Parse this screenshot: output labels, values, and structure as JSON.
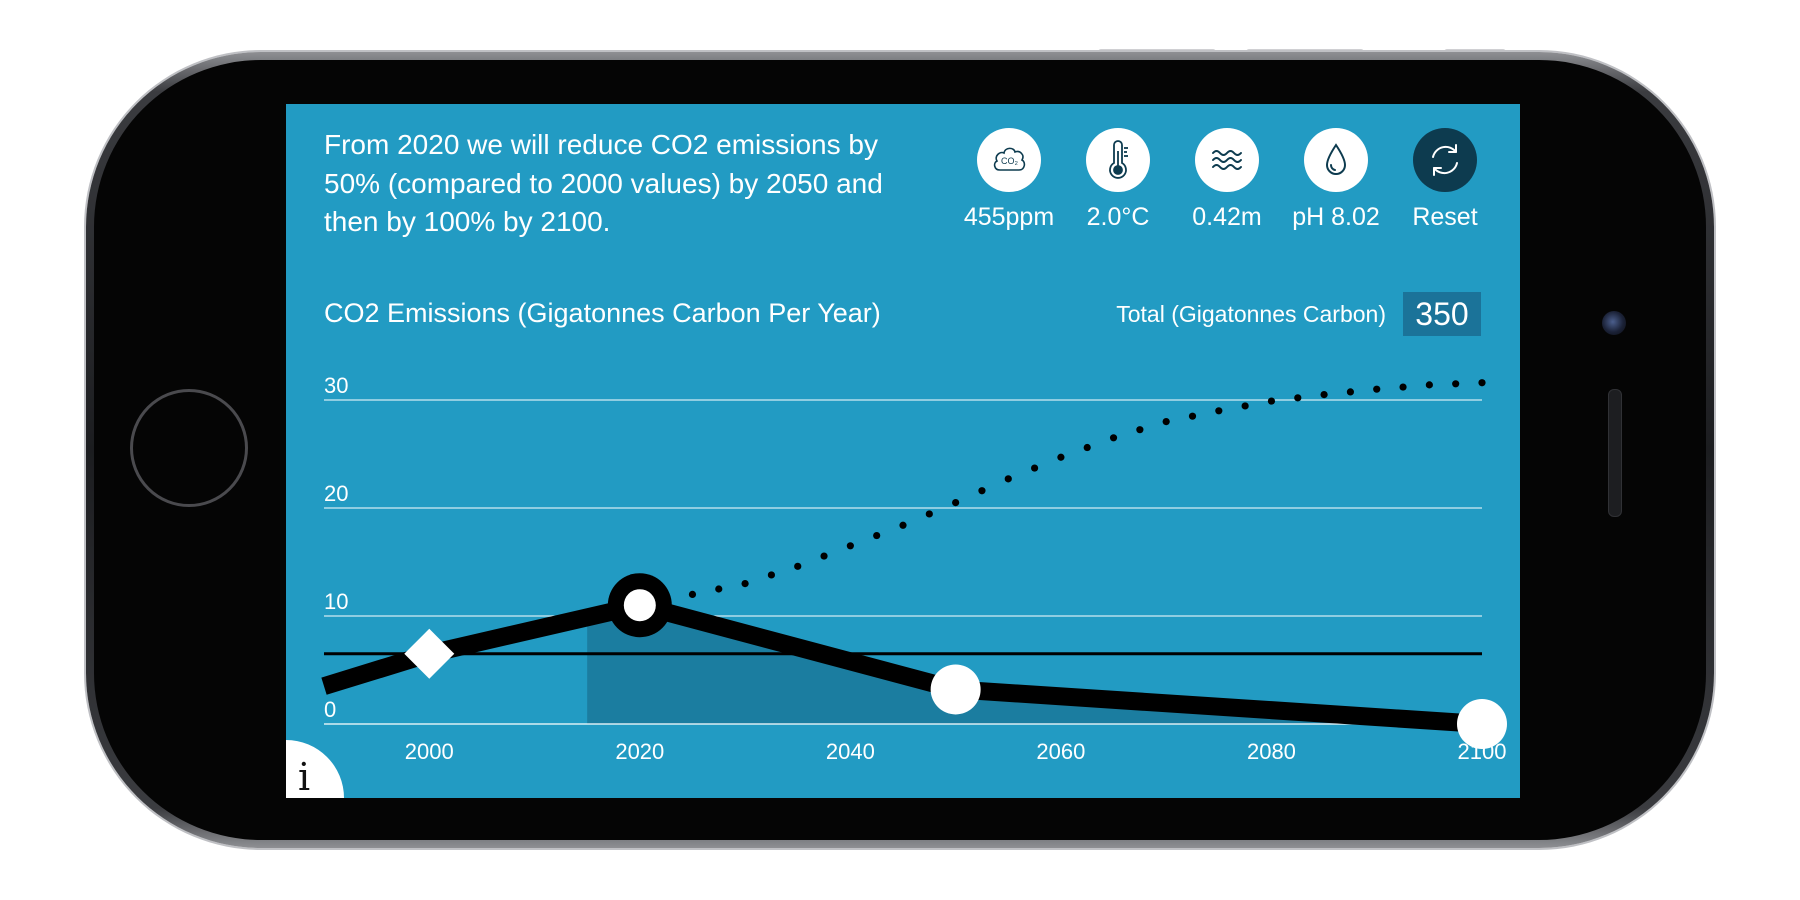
{
  "intro_text": "From 2020 we will reduce CO2 emissions by 50% (compared to 2000 values) by 2050 and then by 100% by 2100.",
  "indicators": [
    {
      "icon": "co2-cloud-icon",
      "label": "455ppm"
    },
    {
      "icon": "thermometer-icon",
      "label": "2.0°C"
    },
    {
      "icon": "waves-icon",
      "label": "0.42m"
    },
    {
      "icon": "water-drop-icon",
      "label": "pH 8.02"
    },
    {
      "icon": "reset-icon",
      "label": "Reset"
    }
  ],
  "total": {
    "label": "Total (Gigatonnes Carbon)",
    "value": "350"
  },
  "info_button": {
    "label": "i"
  },
  "colors": {
    "screen_bg": "#229bc3",
    "line": "#000000",
    "shaded_area": "#1b7a9c",
    "total_box": "#1b7399",
    "reset_bg": "#0d3b4f"
  },
  "chart_data": {
    "type": "line",
    "title": "CO2 Emissions (Gigatonnes Carbon Per Year)",
    "xlim": [
      1990,
      2100
    ],
    "ylim": [
      0,
      30
    ],
    "x_ticks": [
      2000,
      2020,
      2040,
      2060,
      2080,
      2100
    ],
    "y_ticks": [
      0,
      10,
      20,
      30
    ],
    "grid": true,
    "reference_line_y": 6.5,
    "shaded_area_from_x": 2015,
    "series": [
      {
        "style": "solid",
        "points": [
          [
            1990,
            3.5
          ],
          [
            2000,
            6.5
          ],
          [
            2020,
            11.0
          ],
          [
            2050,
            3.2
          ],
          [
            2100,
            0.0
          ]
        ],
        "markers": [
          {
            "x": 2000,
            "y": 6.5,
            "shape": "diamond"
          },
          {
            "x": 2020,
            "y": 11.0,
            "shape": "ring"
          },
          {
            "x": 2050,
            "y": 3.2,
            "shape": "circle"
          },
          {
            "x": 2100,
            "y": 0.0,
            "shape": "circle"
          }
        ]
      },
      {
        "style": "dotted",
        "points": [
          [
            2025,
            12.0
          ],
          [
            2030,
            13.0
          ],
          [
            2035,
            14.6
          ],
          [
            2040,
            16.5
          ],
          [
            2045,
            18.4
          ],
          [
            2050,
            20.5
          ],
          [
            2055,
            22.7
          ],
          [
            2060,
            24.7
          ],
          [
            2065,
            26.5
          ],
          [
            2070,
            28.0
          ],
          [
            2075,
            29.0
          ],
          [
            2080,
            29.9
          ],
          [
            2085,
            30.5
          ],
          [
            2090,
            31.0
          ],
          [
            2095,
            31.4
          ],
          [
            2100,
            31.6
          ]
        ]
      }
    ]
  }
}
